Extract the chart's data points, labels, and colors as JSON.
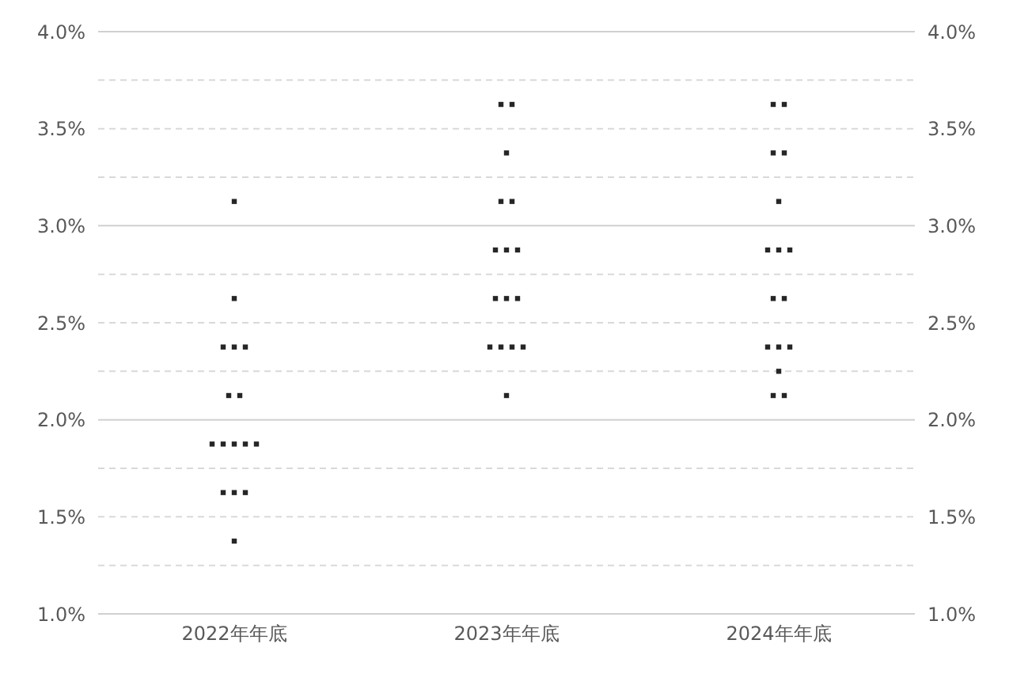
{
  "chart_data": {
    "type": "scatter",
    "categories": [
      "2022年年底",
      "2023年年底",
      "2024年年底"
    ],
    "series": [
      {
        "color": "#262626",
        "x": [
          "2022年年底",
          "2022年年底",
          "2022年年底",
          "2022年年底",
          "2022年年底",
          "2022年年底",
          "2022年年底",
          "2022年年底",
          "2022年年底",
          "2022年年底",
          "2022年年底",
          "2022年年底",
          "2022年年底",
          "2022年年底",
          "2022年年底",
          "2022年年底",
          "2023年年底",
          "2023年年底",
          "2023年年底",
          "2023年年底",
          "2023年年底",
          "2023年年底",
          "2023年年底",
          "2023年年底",
          "2023年年底",
          "2023年年底",
          "2023年年底",
          "2023年年底",
          "2023年年底",
          "2023年年底",
          "2023年年底",
          "2023年年底",
          "2024年年底",
          "2024年年底",
          "2024年年底",
          "2024年年底",
          "2024年年底",
          "2024年年底",
          "2024年年底",
          "2024年年底",
          "2024年年底",
          "2024年年底",
          "2024年年底",
          "2024年年底",
          "2024年年底",
          "2024年年底",
          "2024年年底",
          "2024年年底"
        ],
        "values": [
          3.125,
          2.625,
          2.375,
          2.375,
          2.375,
          2.125,
          2.125,
          1.875,
          1.875,
          1.875,
          1.875,
          1.875,
          1.625,
          1.625,
          1.625,
          1.375,
          3.625,
          3.625,
          3.375,
          3.125,
          3.125,
          2.875,
          2.875,
          2.875,
          2.625,
          2.625,
          2.625,
          2.375,
          2.375,
          2.375,
          2.375,
          2.125,
          3.625,
          3.625,
          3.375,
          3.375,
          3.125,
          2.875,
          2.875,
          2.875,
          2.625,
          2.625,
          2.375,
          2.375,
          2.375,
          2.25,
          2.125,
          2.125
        ]
      }
    ],
    "ylim": [
      1,
      4
    ],
    "yticks": [
      {
        "value": 1,
        "label": "1.0%"
      },
      {
        "value": 1.25,
        "label": null
      },
      {
        "value": 1.5,
        "label": "1.5%"
      },
      {
        "value": 1.75,
        "label": null
      },
      {
        "value": 2,
        "label": "2.0%"
      },
      {
        "value": 2.25,
        "label": null
      },
      {
        "value": 2.5,
        "label": "2.5%"
      },
      {
        "value": 2.75,
        "label": null
      },
      {
        "value": 3,
        "label": "3.0%"
      },
      {
        "value": 3.25,
        "label": null
      },
      {
        "value": 3.5,
        "label": "3.5%"
      },
      {
        "value": 3.75,
        "label": null
      },
      {
        "value": 4,
        "label": "4.0%"
      }
    ],
    "y2lim": [
      1,
      4
    ],
    "y2ticks": [
      {
        "value": 1,
        "label": "1.0%"
      },
      {
        "value": 1.5,
        "label": "1.5%"
      },
      {
        "value": 2,
        "label": "2.0%"
      },
      {
        "value": 2.5,
        "label": "2.5%"
      },
      {
        "value": 3,
        "label": "3.0%"
      },
      {
        "value": 3.5,
        "label": "3.5%"
      },
      {
        "value": 4,
        "label": "4.0%"
      }
    ],
    "grid": "y",
    "marker": "square"
  }
}
